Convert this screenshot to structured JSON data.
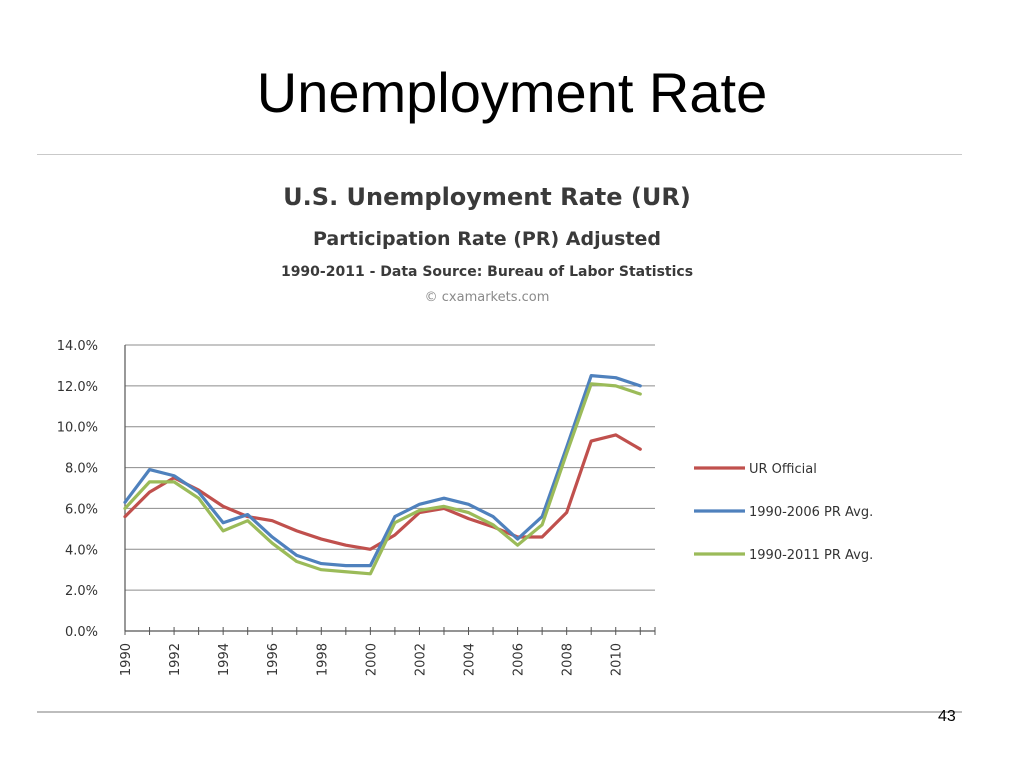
{
  "slide": {
    "title": "Unemployment Rate",
    "page_number": "43"
  },
  "chart_data": {
    "type": "line",
    "title": "U.S. Unemployment Rate (UR)",
    "subtitle": "Participation Rate (PR) Adjusted",
    "subtitle2": "1990-2011 - Data Source: Bureau of Labor Statistics",
    "credit": "© cxamarkets.com",
    "x": [
      1990,
      1991,
      1992,
      1993,
      1994,
      1995,
      1996,
      1997,
      1998,
      1999,
      2000,
      2001,
      2002,
      2003,
      2004,
      2005,
      2006,
      2007,
      2008,
      2009,
      2010,
      2011
    ],
    "x_tick_labels": [
      "1990",
      "1992",
      "1994",
      "1996",
      "1998",
      "2000",
      "2002",
      "2004",
      "2006",
      "2008",
      "2010"
    ],
    "x_tick_values": [
      1990,
      1992,
      1994,
      1996,
      1998,
      2000,
      2002,
      2004,
      2006,
      2008,
      2010
    ],
    "y_tick_labels": [
      "0.0%",
      "2.0%",
      "4.0%",
      "6.0%",
      "8.0%",
      "10.0%",
      "12.0%",
      "14.0%"
    ],
    "y_tick_values": [
      0,
      2,
      4,
      6,
      8,
      10,
      12,
      14
    ],
    "ylim": [
      0,
      14
    ],
    "grid": true,
    "legend_position": "right",
    "series": [
      {
        "name": "UR Official",
        "color": "#c0504d",
        "values": [
          5.6,
          6.8,
          7.5,
          6.9,
          6.1,
          5.6,
          5.4,
          4.9,
          4.5,
          4.2,
          4.0,
          4.7,
          5.8,
          6.0,
          5.5,
          5.1,
          4.6,
          4.6,
          5.8,
          9.3,
          9.6,
          8.9
        ]
      },
      {
        "name": "1990-2006 PR Avg.",
        "color": "#4f81bd",
        "values": [
          6.3,
          7.9,
          7.6,
          6.8,
          5.3,
          5.7,
          4.6,
          3.7,
          3.3,
          3.2,
          3.2,
          5.6,
          6.2,
          6.5,
          6.2,
          5.6,
          4.5,
          5.6,
          9.0,
          12.5,
          12.4,
          12.0
        ]
      },
      {
        "name": "1990-2011 PR Avg.",
        "color": "#9bbb59",
        "values": [
          6.0,
          7.3,
          7.3,
          6.5,
          4.9,
          5.4,
          4.3,
          3.4,
          3.0,
          2.9,
          2.8,
          5.3,
          5.9,
          6.1,
          5.8,
          5.2,
          4.2,
          5.2,
          8.7,
          12.1,
          12.0,
          11.6
        ]
      }
    ]
  }
}
